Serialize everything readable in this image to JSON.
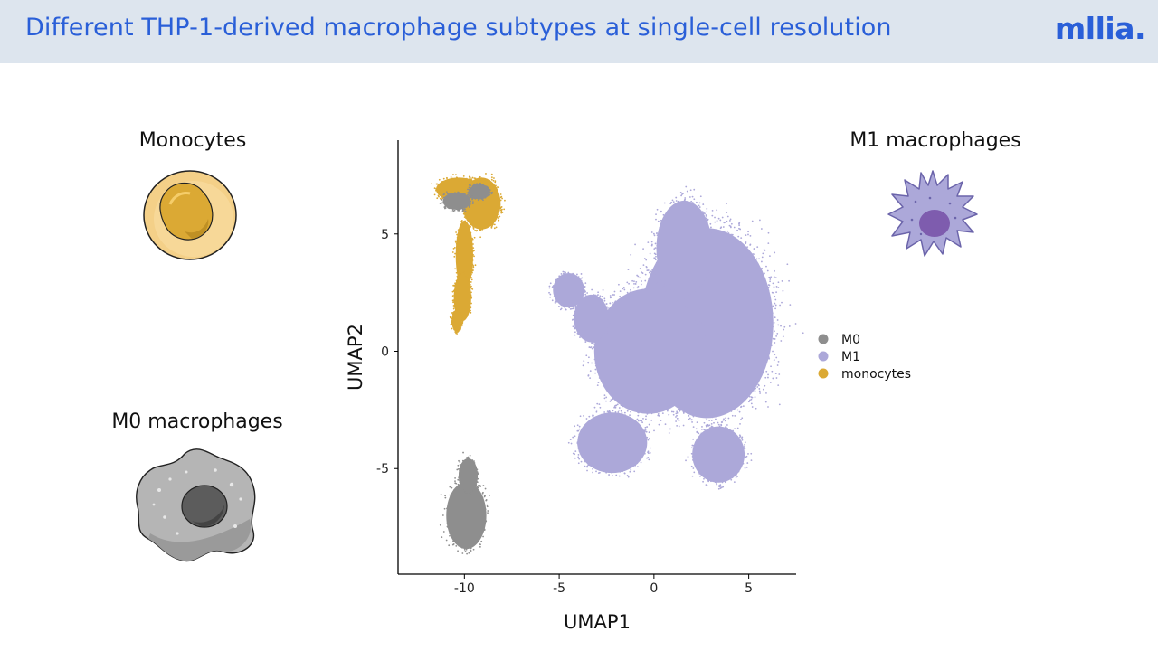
{
  "header": {
    "title": "Different THP-1-derived macrophage subtypes at single-cell resolution",
    "logo": "mllia."
  },
  "cells": {
    "monocytes_label": "Monocytes",
    "m0_label": "M0 macrophages",
    "m1_label": "M1 macrophages"
  },
  "colors": {
    "M0": "#8e8e8e",
    "M1": "#aca8d9",
    "monocytes": "#dba934",
    "title": "#2a5fd8",
    "header_bg": "#dde5ee"
  },
  "chart_data": {
    "type": "scatter",
    "title": "",
    "xlabel": "UMAP1",
    "ylabel": "UMAP2",
    "xlim": [
      -13.5,
      7.5
    ],
    "ylim": [
      -9.5,
      9
    ],
    "xticks": [
      -10,
      -5,
      0,
      5
    ],
    "yticks": [
      -5,
      0,
      5
    ],
    "xtick_labels": [
      "-10",
      "-5",
      "0",
      "5"
    ],
    "ytick_labels": [
      "-5",
      "0",
      "5"
    ],
    "grid": false,
    "legend_position": "right",
    "legend": [
      {
        "name": "M0"
      },
      {
        "name": "M1"
      },
      {
        "name": "monocytes"
      }
    ],
    "series": [
      {
        "name": "M1",
        "clusters": [
          {
            "cx": 2.8,
            "cy": 1.2,
            "rx": 3.8,
            "ry": 4.4,
            "rot": 0
          },
          {
            "cx": 1.6,
            "cy": 4.4,
            "rx": 1.6,
            "ry": 2.2,
            "rot": 0
          },
          {
            "cx": -0.3,
            "cy": 0.0,
            "rx": 3.1,
            "ry": 2.9,
            "rot": 0
          },
          {
            "cx": -2.2,
            "cy": -3.9,
            "rx": 2.0,
            "ry": 1.4,
            "rot": 0
          },
          {
            "cx": 3.4,
            "cy": -4.4,
            "rx": 1.5,
            "ry": 1.3,
            "rot": 0
          },
          {
            "cx": -4.5,
            "cy": 2.6,
            "rx": 0.9,
            "ry": 0.8,
            "rot": 0
          },
          {
            "cx": -3.3,
            "cy": 1.4,
            "rx": 1.0,
            "ry": 1.1,
            "rot": 0
          }
        ]
      },
      {
        "name": "monocytes",
        "clusters": [
          {
            "cx": -10.3,
            "cy": 6.9,
            "rx": 1.3,
            "ry": 0.55,
            "rot": 0
          },
          {
            "cx": -9.1,
            "cy": 6.3,
            "rx": 1.1,
            "ry": 1.2,
            "rot": 0
          },
          {
            "cx": -10.0,
            "cy": 4.1,
            "rx": 0.5,
            "ry": 1.6,
            "rot": 0
          },
          {
            "cx": -10.1,
            "cy": 2.3,
            "rx": 0.5,
            "ry": 1.1,
            "rot": 0
          },
          {
            "cx": -10.4,
            "cy": 1.3,
            "rx": 0.3,
            "ry": 0.5,
            "rot": 0
          }
        ]
      },
      {
        "name": "M0",
        "clusters": [
          {
            "cx": -9.9,
            "cy": -7.0,
            "rx": 1.15,
            "ry": 1.55,
            "rot": 0
          },
          {
            "cx": -9.8,
            "cy": -5.3,
            "rx": 0.55,
            "ry": 0.8,
            "rot": 0
          },
          {
            "cx": -10.4,
            "cy": 6.4,
            "rx": 0.8,
            "ry": 0.4,
            "rot": 0
          },
          {
            "cx": -9.2,
            "cy": 6.8,
            "rx": 0.6,
            "ry": 0.35,
            "rot": 0
          }
        ]
      }
    ]
  }
}
